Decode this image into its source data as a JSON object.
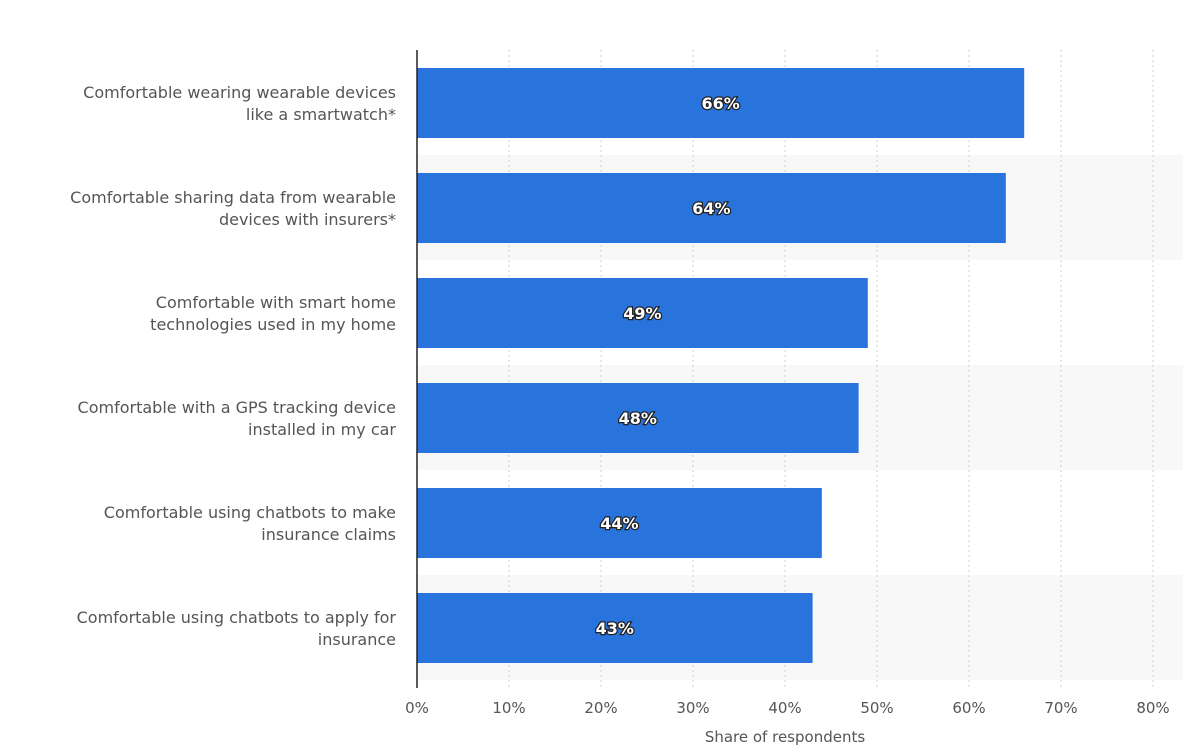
{
  "chart_data": {
    "type": "bar",
    "orientation": "horizontal",
    "categories": [
      [
        "Comfortable wearing wearable devices",
        "like a smartwatch*"
      ],
      [
        "Comfortable sharing data from wearable",
        "devices with insurers*"
      ],
      [
        "Comfortable with smart home",
        "technologies used in my home"
      ],
      [
        "Comfortable with a GPS tracking device",
        "installed in my car"
      ],
      [
        "Comfortable using chatbots to make",
        "insurance claims"
      ],
      [
        "Comfortable using chatbots to apply for",
        "insurance"
      ]
    ],
    "values": [
      66,
      64,
      49,
      48,
      44,
      43
    ],
    "data_labels": [
      "66%",
      "64%",
      "49%",
      "48%",
      "44%",
      "43%"
    ],
    "xlabel": "Share of respondents",
    "ylabel": "",
    "xlim": [
      0,
      80
    ],
    "ticks": [
      0,
      10,
      20,
      30,
      40,
      50,
      60,
      70,
      80
    ],
    "tick_labels": [
      "0%",
      "10%",
      "20%",
      "30%",
      "40%",
      "50%",
      "60%",
      "70%",
      "80%"
    ],
    "grid": true,
    "colors": {
      "bar": "#2874dc",
      "band": "#f8f8f8",
      "grid": "#cfcfcf",
      "axis": "#222222",
      "text": "#555555"
    }
  }
}
